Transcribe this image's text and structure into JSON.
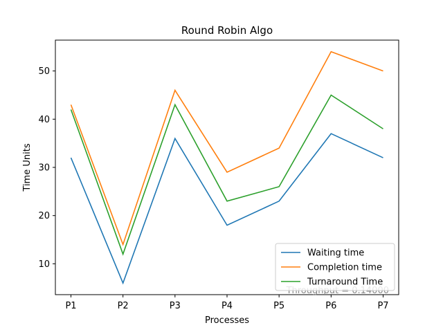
{
  "chart_data": {
    "type": "line",
    "title": "Round Robin Algo",
    "xlabel": "Processes",
    "ylabel": "Time Units",
    "categories": [
      "P1",
      "P2",
      "P3",
      "P4",
      "P5",
      "P6",
      "P7"
    ],
    "yticks": [
      10,
      20,
      30,
      40,
      50
    ],
    "ylim": [
      3.6,
      56.4
    ],
    "grid": false,
    "legend_placement": "lower-right",
    "series": [
      {
        "name": "Waiting time",
        "color": "#1f77b4",
        "values": [
          32,
          6,
          36,
          18,
          23,
          37,
          32
        ]
      },
      {
        "name": "Completion time",
        "color": "#ff7f0e",
        "values": [
          43,
          14,
          46,
          29,
          34,
          54,
          50
        ]
      },
      {
        "name": "Turnaround Time",
        "color": "#2ca02c",
        "values": [
          42,
          12,
          43,
          23,
          26,
          45,
          38
        ]
      }
    ],
    "annotation": "Throughput = 0.14000"
  }
}
